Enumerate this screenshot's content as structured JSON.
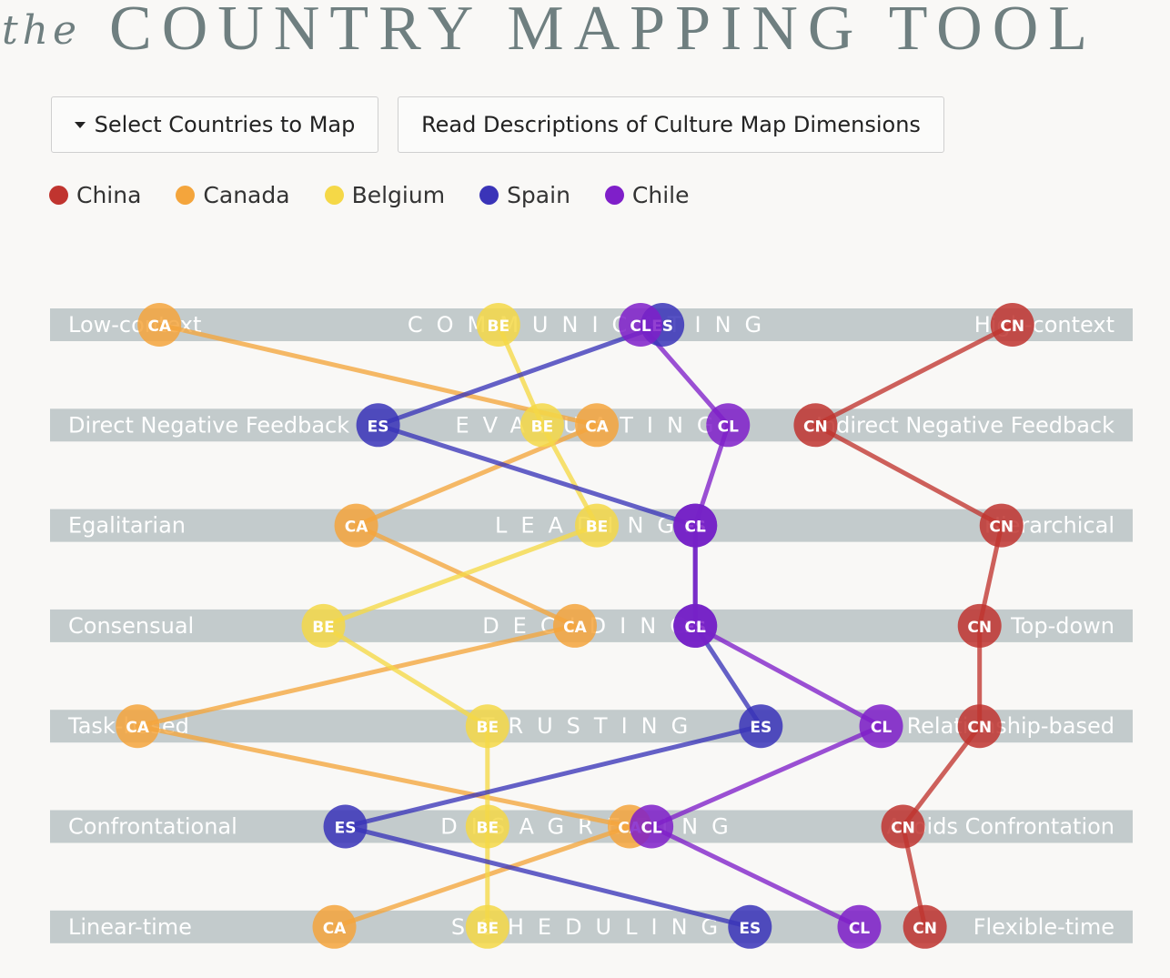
{
  "header": {
    "title_prefix": "the",
    "title_main": "COUNTRY MAPPING TOOL"
  },
  "toolbar": {
    "select_label": "Select Countries to Map",
    "read_label": "Read Descriptions of Culture Map Dimensions"
  },
  "icons": {
    "select_caret": "caret-down-icon"
  },
  "legend": [
    {
      "name": "China",
      "color": "#c0342f"
    },
    {
      "name": "Canada",
      "color": "#f4a53c"
    },
    {
      "name": "Belgium",
      "color": "#f5d847"
    },
    {
      "name": "Spain",
      "color": "#3a34b8"
    },
    {
      "name": "Chile",
      "color": "#7f1fc9"
    }
  ],
  "chart_data": {
    "type": "line",
    "x_range": [
      1,
      100
    ],
    "dimensions": [
      {
        "name": "COMMUNICATING",
        "left": "Low-context",
        "right": "High-context"
      },
      {
        "name": "EVALUATING",
        "left": "Direct Negative Feedback",
        "right": "Indirect Negative Feedback"
      },
      {
        "name": "LEADING",
        "left": "Egalitarian",
        "right": "Hierarchical"
      },
      {
        "name": "DECIDING",
        "left": "Consensual",
        "right": "Top-down"
      },
      {
        "name": "TRUSTING",
        "left": "Task-based",
        "right": "Relationship-based"
      },
      {
        "name": "DISAGREEING",
        "left": "Confrontational",
        "right": "Avoids Confrontation"
      },
      {
        "name": "SCHEDULING",
        "left": "Linear-time",
        "right": "Flexible-time"
      }
    ],
    "series": [
      {
        "name": "China",
        "code": "CN",
        "color": "#c0342f",
        "values": [
          89,
          71,
          88,
          86,
          86,
          79,
          81
        ]
      },
      {
        "name": "Canada",
        "code": "CA",
        "color": "#f4a53c",
        "values": [
          11,
          51,
          29,
          49,
          9,
          54,
          27
        ]
      },
      {
        "name": "Belgium",
        "code": "BE",
        "color": "#f5d847",
        "values": [
          42,
          46,
          51,
          26,
          41,
          41,
          41
        ]
      },
      {
        "name": "Spain",
        "code": "ES",
        "color": "#3a34b8",
        "values": [
          57,
          31,
          60,
          60,
          66,
          28,
          65
        ]
      },
      {
        "name": "Chile",
        "code": "CL",
        "color": "#7f1fc9",
        "values": [
          55,
          63,
          60,
          60,
          77,
          56,
          75
        ]
      }
    ]
  }
}
